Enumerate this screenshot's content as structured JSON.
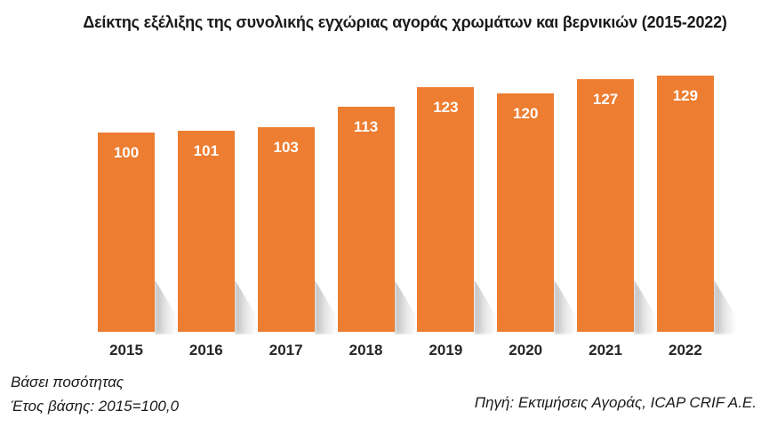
{
  "title": "Δείκτης εξέλιξης της συνολικής εγχώριας αγοράς χρωμάτων και βερνικιών (2015-2022)",
  "footnotes": {
    "left_line1": "Βάσει ποσότητας",
    "left_line2": "Έτος βάσης: 2015=100,0",
    "source": "Πηγή: Εκτιμήσεις Αγοράς, ICAP CRIF A.E."
  },
  "colors": {
    "bar": "#ED7D31",
    "value_label": "#FFFFFF",
    "axis_label": "#262626",
    "title": "#1A1A1A",
    "shadow": "#ABABAB",
    "background": "#FFFFFF"
  },
  "chart_data": {
    "type": "bar",
    "title": "Δείκτης εξέλιξης της συνολικής εγχώριας αγοράς χρωμάτων και βερνικιών (2015-2022)",
    "categories": [
      "2015",
      "2016",
      "2017",
      "2018",
      "2019",
      "2020",
      "2021",
      "2022"
    ],
    "values": [
      100,
      101,
      103,
      113,
      123,
      120,
      127,
      129
    ],
    "xlabel": "",
    "ylabel": "",
    "ylim": [
      0,
      140
    ],
    "grid": false,
    "legend": false,
    "axes_visible": false,
    "data_labels_position": "inside-top",
    "bar_color": "#ED7D31"
  }
}
